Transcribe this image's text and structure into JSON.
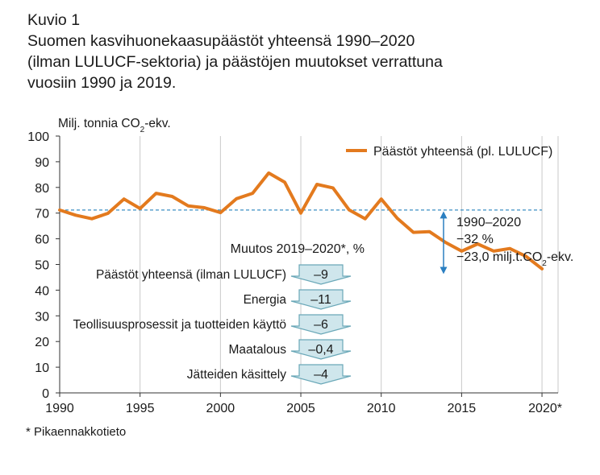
{
  "header": {
    "figure_label": "Kuvio 1",
    "title_line1": "Suomen kasvihuonekaasupäästöt yhteensä 1990–2020",
    "title_line2": "(ilman LULUCF-sektoria) ja päästöjen muutokset verrattuna",
    "title_line3": "vuosiin 1990 ja 2019."
  },
  "footnote": "* Pikaennakkotieto",
  "colors": {
    "series": "#e37a1e",
    "arrow": "#2a7fc1",
    "box_fill": "#cfe6ec",
    "box_stroke": "#6aa8b8"
  },
  "chart_data": {
    "type": "line",
    "ylabel": "Milj. tonnia CO₂-ekv.",
    "ylim": [
      0,
      100
    ],
    "xlim": [
      1990,
      2021
    ],
    "yticks": [
      "0",
      "10",
      "20",
      "30",
      "40",
      "50",
      "60",
      "70",
      "80",
      "90",
      "100"
    ],
    "xticks": [
      {
        "value": 1990,
        "label": "1990"
      },
      {
        "value": 1995,
        "label": "1995"
      },
      {
        "value": 2000,
        "label": "2000"
      },
      {
        "value": 2005,
        "label": "2005"
      },
      {
        "value": 2010,
        "label": "2010"
      },
      {
        "value": 2015,
        "label": "2015"
      },
      {
        "value": 2020,
        "label": "2020*"
      }
    ],
    "reference_line": 71.2,
    "series": [
      {
        "name": "Päästöt yhteensä (pl. LULUCF)",
        "x": [
          1990,
          1991,
          1992,
          1993,
          1994,
          1995,
          1996,
          1997,
          1998,
          1999,
          2000,
          2001,
          2002,
          2003,
          2004,
          2005,
          2006,
          2007,
          2008,
          2009,
          2010,
          2011,
          2012,
          2013,
          2014,
          2015,
          2016,
          2017,
          2018,
          2019,
          2020
        ],
        "values": [
          71.2,
          69.2,
          67.8,
          69.9,
          75.5,
          71.8,
          77.7,
          76.5,
          72.8,
          72.1,
          70.2,
          75.6,
          77.7,
          85.6,
          82.0,
          70.0,
          81.2,
          79.8,
          71.3,
          67.8,
          75.5,
          68.0,
          62.5,
          62.8,
          58.6,
          55.2,
          58.0,
          55.2,
          56.2,
          53.2,
          48.3
        ]
      }
    ],
    "annotation": {
      "period": "1990–2020",
      "percent": "−32 %",
      "amount_prefix": "−23,0 milj.t.CO",
      "amount_sub": "2",
      "amount_suffix": "-ekv."
    },
    "changes_title": "Muutos 2019–2020*, %",
    "changes": [
      {
        "label": "Päästöt yhteensä (ilman LULUCF)",
        "value": "–9"
      },
      {
        "label": "Energia",
        "value": "–11"
      },
      {
        "label": "Teollisuusprosessit ja tuotteiden käyttö",
        "value": "–6"
      },
      {
        "label": "Maatalous",
        "value": "–0,4"
      },
      {
        "label": "Jätteiden käsittely",
        "value": "–4"
      }
    ]
  }
}
